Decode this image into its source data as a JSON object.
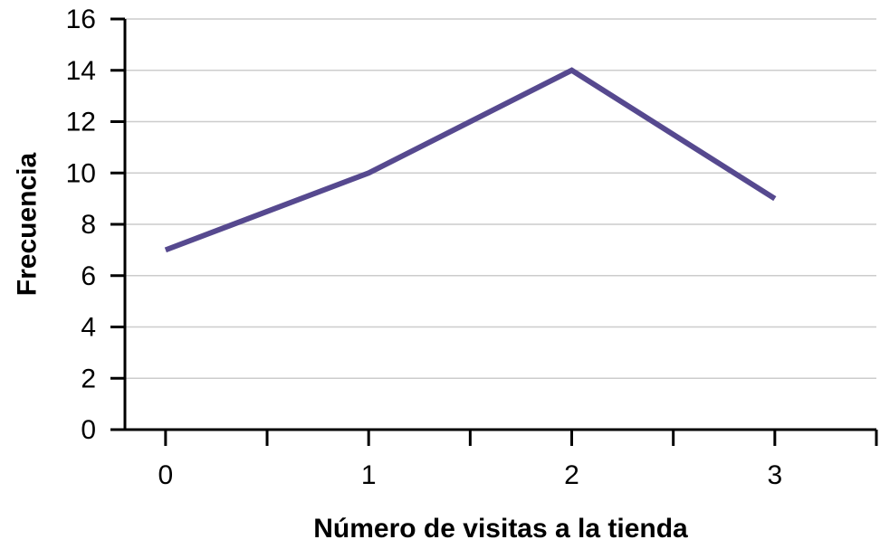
{
  "chart_data": {
    "type": "line",
    "title": "",
    "xlabel": "Número de visitas a la tienda",
    "ylabel": "Frecuencia",
    "x": [
      0,
      1,
      2,
      3
    ],
    "xlim": [
      -0.2,
      3.5
    ],
    "x_tick_labels": [
      "0",
      "1",
      "2",
      "3"
    ],
    "ylim": [
      0,
      16
    ],
    "y_ticks": [
      0,
      2,
      4,
      6,
      8,
      10,
      12,
      14,
      16
    ],
    "grid": true,
    "legend": "none",
    "series": [
      {
        "values": [
          7,
          10,
          14,
          9
        ],
        "color": "#56498f"
      }
    ],
    "colors": {
      "gridline": "#cccccc",
      "axis": "#000000"
    }
  }
}
